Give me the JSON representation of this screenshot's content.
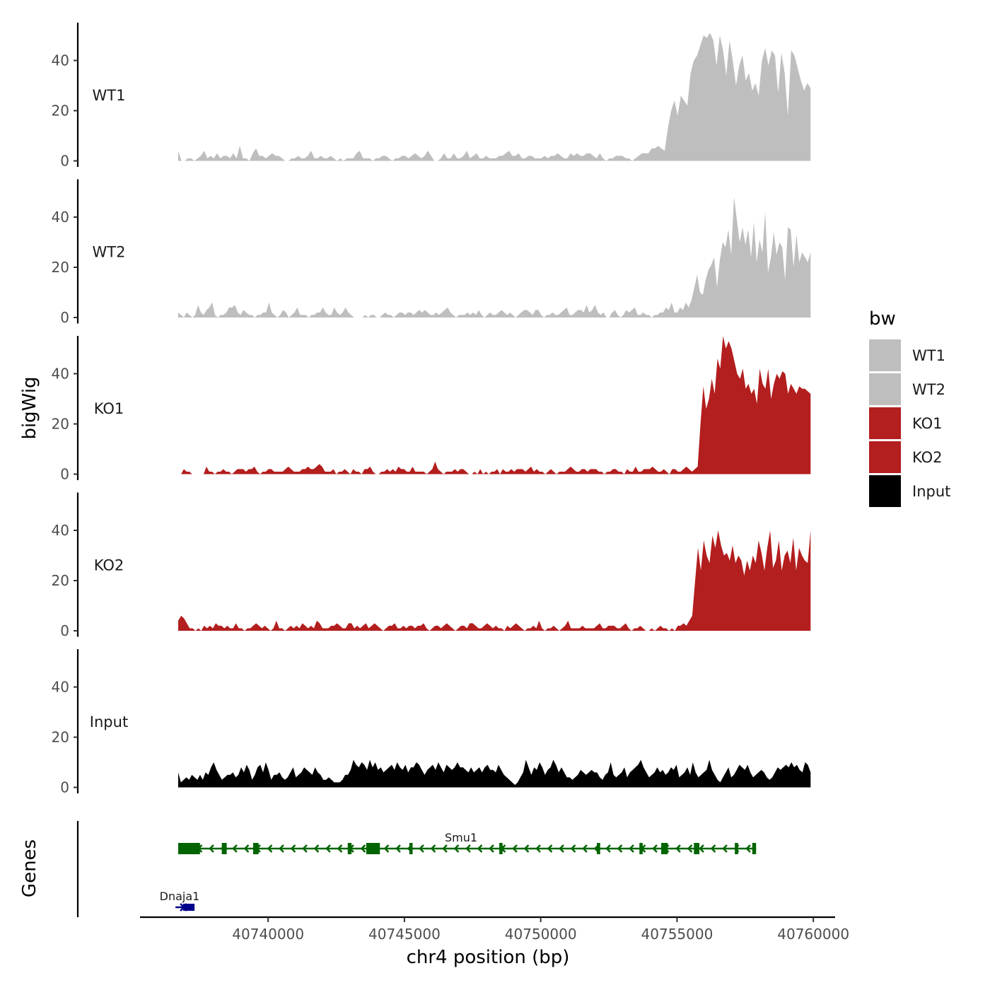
{
  "chart_data": {
    "type": "area",
    "title": "",
    "xlabel": "chr4 position (bp)",
    "ylabel": "bigWig",
    "genes_label": "Genes",
    "x_range": [
      40736700,
      40759900
    ],
    "xlim": [
      40735300,
      40760800
    ],
    "x_ticks": [
      40740000,
      40745000,
      40750000,
      40755000,
      40760000
    ],
    "x_tick_labels": [
      "40740000",
      "40745000",
      "40750000",
      "40755000",
      "40760000"
    ],
    "ylim": [
      0,
      55
    ],
    "y_ticks": [
      0,
      20,
      40
    ],
    "y_tick_labels": [
      "0",
      "20",
      "40"
    ],
    "legend": {
      "title": "bw",
      "position": "right",
      "entries": [
        {
          "label": "WT1",
          "color": "#bebebe"
        },
        {
          "label": "WT2",
          "color": "#bebebe"
        },
        {
          "label": "KO1",
          "color": "#b31e1e"
        },
        {
          "label": "KO2",
          "color": "#b31e1e"
        },
        {
          "label": "Input",
          "color": "#000000"
        }
      ]
    },
    "series": [
      {
        "name": "WT1",
        "color": "#bebebe",
        "values": [
          4,
          0,
          0,
          1,
          1,
          0,
          1,
          2,
          4,
          1,
          2,
          1,
          3,
          1,
          2,
          2,
          1,
          3,
          1,
          6,
          1,
          1,
          0,
          3,
          5,
          2,
          2,
          1,
          2,
          3,
          2,
          2,
          1,
          0,
          0,
          1,
          1,
          2,
          1,
          1,
          2,
          4,
          1,
          1,
          2,
          1,
          1,
          2,
          1,
          0,
          1,
          0,
          1,
          1,
          1,
          3,
          4,
          1,
          1,
          1,
          0,
          1,
          1,
          2,
          2,
          1,
          0,
          1,
          1,
          2,
          2,
          1,
          2,
          3,
          2,
          1,
          2,
          4,
          2,
          0,
          0,
          1,
          3,
          1,
          1,
          3,
          1,
          1,
          2,
          4,
          1,
          2,
          3,
          1,
          1,
          2,
          1,
          1,
          1,
          2,
          2,
          3,
          4,
          2,
          2,
          3,
          1,
          1,
          2,
          2,
          1,
          1,
          1,
          2,
          1,
          2,
          2,
          3,
          2,
          1,
          1,
          3,
          2,
          3,
          2,
          2,
          3,
          3,
          2,
          1,
          3,
          1,
          0,
          1,
          1,
          2,
          2,
          2,
          1,
          1,
          0,
          1,
          2,
          3,
          3,
          3,
          5,
          5,
          6,
          5,
          4,
          13,
          20,
          24,
          18,
          26,
          24,
          22,
          35,
          40,
          42,
          46,
          50,
          49,
          51,
          48,
          38,
          50,
          44,
          34,
          48,
          40,
          30,
          38,
          42,
          32,
          35,
          28,
          31,
          26,
          40,
          45,
          38,
          44,
          42,
          27,
          43,
          35,
          18,
          44,
          42,
          37,
          32,
          28,
          31,
          29
        ]
      },
      {
        "name": "WT2",
        "color": "#bebebe",
        "values": [
          2,
          1,
          0,
          2,
          1,
          0,
          1,
          5,
          2,
          1,
          3,
          4,
          6,
          1,
          0,
          1,
          1,
          2,
          4,
          4,
          5,
          2,
          1,
          3,
          2,
          1,
          1,
          0,
          1,
          1,
          2,
          2,
          6,
          2,
          1,
          0,
          1,
          3,
          2,
          0,
          1,
          2,
          4,
          1,
          1,
          1,
          0,
          1,
          1,
          2,
          2,
          4,
          2,
          1,
          1,
          4,
          2,
          1,
          2,
          4,
          2,
          1,
          0,
          0,
          0,
          0,
          1,
          0,
          1,
          1,
          0,
          0,
          1,
          2,
          1,
          1,
          0,
          1,
          2,
          2,
          1,
          2,
          2,
          1,
          2,
          3,
          2,
          3,
          2,
          1,
          1,
          2,
          1,
          2,
          3,
          4,
          2,
          1,
          0,
          1,
          1,
          1,
          2,
          1,
          2,
          1,
          3,
          1,
          0,
          1,
          2,
          1,
          1,
          2,
          3,
          2,
          1,
          2,
          1,
          0,
          1,
          2,
          3,
          3,
          2,
          1,
          3,
          3,
          1,
          0,
          1,
          1,
          2,
          1,
          1,
          2,
          3,
          4,
          1,
          1,
          2,
          3,
          3,
          2,
          5,
          2,
          3,
          5,
          2,
          1,
          2,
          0,
          0,
          2,
          3,
          1,
          0,
          1,
          3,
          2,
          3,
          4,
          1,
          1,
          2,
          1,
          1,
          0,
          1,
          1,
          2,
          2,
          4,
          3,
          6,
          2,
          2,
          4,
          3,
          6,
          4,
          7,
          12,
          17,
          10,
          9,
          15,
          19,
          21,
          24,
          12,
          23,
          30,
          28,
          35,
          25,
          48,
          39,
          30,
          36,
          29,
          35,
          24,
          38,
          22,
          31,
          26,
          42,
          18,
          24,
          34,
          25,
          30,
          28,
          15,
          36,
          35,
          20,
          33,
          22,
          26,
          24,
          22,
          26
        ]
      },
      {
        "name": "KO1",
        "color": "#b31e1e",
        "values": [
          0,
          0,
          2,
          1,
          1,
          0,
          0,
          0,
          0,
          0,
          3,
          1,
          1,
          0,
          1,
          1,
          2,
          1,
          1,
          0,
          1,
          2,
          2,
          2,
          1,
          2,
          2,
          3,
          1,
          0,
          1,
          1,
          2,
          2,
          1,
          1,
          1,
          1,
          2,
          3,
          2,
          1,
          1,
          1,
          2,
          2,
          3,
          2,
          2,
          3,
          4,
          3,
          1,
          1,
          1,
          2,
          0,
          1,
          1,
          2,
          1,
          0,
          2,
          1,
          1,
          0,
          2,
          2,
          3,
          1,
          0,
          0,
          1,
          1,
          2,
          1,
          2,
          1,
          3,
          2,
          2,
          1,
          1,
          3,
          1,
          1,
          1,
          1,
          0,
          1,
          2,
          5,
          2,
          1,
          0,
          1,
          1,
          1,
          2,
          1,
          2,
          2,
          1,
          0,
          0,
          1,
          0,
          2,
          0,
          1,
          0,
          1,
          1,
          2,
          0,
          2,
          1,
          1,
          2,
          1,
          2,
          2,
          2,
          1,
          2,
          3,
          1,
          2,
          1,
          1,
          0,
          1,
          2,
          1,
          0,
          1,
          1,
          1,
          2,
          3,
          2,
          1,
          1,
          2,
          2,
          1,
          2,
          2,
          2,
          1,
          1,
          0,
          1,
          1,
          2,
          2,
          1,
          1,
          0,
          2,
          1,
          1,
          3,
          1,
          1,
          2,
          2,
          2,
          3,
          2,
          1,
          1,
          2,
          1,
          0,
          2,
          2,
          1,
          1,
          2,
          3,
          2,
          1,
          2,
          3,
          20,
          35,
          26,
          30,
          38,
          32,
          46,
          42,
          55,
          50,
          53,
          50,
          45,
          40,
          38,
          42,
          34,
          36,
          32,
          34,
          28,
          42,
          36,
          34,
          42,
          30,
          36,
          40,
          38,
          41,
          40,
          32,
          36,
          34,
          32,
          35,
          34,
          34,
          33,
          32
        ]
      },
      {
        "name": "KO2",
        "color": "#b31e1e",
        "values": [
          4,
          6,
          5,
          3,
          1,
          1,
          0,
          1,
          0,
          2,
          1,
          2,
          1,
          3,
          2,
          2,
          1,
          2,
          1,
          1,
          3,
          1,
          1,
          0,
          1,
          1,
          2,
          3,
          2,
          1,
          2,
          1,
          0,
          1,
          4,
          1,
          1,
          0,
          1,
          2,
          1,
          2,
          1,
          3,
          2,
          1,
          2,
          1,
          4,
          3,
          1,
          1,
          1,
          2,
          2,
          3,
          2,
          1,
          1,
          3,
          3,
          1,
          2,
          1,
          2,
          3,
          1,
          2,
          3,
          2,
          1,
          0,
          1,
          2,
          2,
          3,
          1,
          1,
          2,
          1,
          2,
          2,
          1,
          2,
          2,
          3,
          1,
          0,
          1,
          2,
          2,
          1,
          2,
          3,
          2,
          1,
          0,
          1,
          2,
          2,
          1,
          3,
          3,
          2,
          1,
          1,
          2,
          3,
          2,
          1,
          2,
          1,
          1,
          0,
          2,
          1,
          2,
          3,
          2,
          1,
          0,
          1,
          1,
          2,
          1,
          4,
          1,
          0,
          1,
          1,
          2,
          1,
          0,
          1,
          2,
          4,
          1,
          1,
          1,
          1,
          2,
          1,
          1,
          1,
          1,
          2,
          3,
          1,
          1,
          2,
          2,
          2,
          1,
          1,
          2,
          3,
          1,
          0,
          1,
          1,
          2,
          1,
          0,
          0,
          1,
          0,
          1,
          2,
          1,
          1,
          0,
          1,
          0,
          2,
          2,
          3,
          2,
          4,
          6,
          20,
          33,
          24,
          36,
          30,
          27,
          38,
          33,
          40,
          34,
          30,
          31,
          28,
          34,
          27,
          30,
          28,
          22,
          28,
          24,
          30,
          27,
          36,
          31,
          24,
          33,
          40,
          25,
          28,
          36,
          24,
          30,
          32,
          27,
          37,
          24,
          33,
          30,
          28,
          27,
          40
        ]
      },
      {
        "name": "Input",
        "color": "#000000",
        "values": [
          6,
          2,
          3,
          4,
          3,
          5,
          4,
          3,
          5,
          3,
          6,
          5,
          8,
          10,
          7,
          5,
          3,
          4,
          5,
          5,
          6,
          4,
          5,
          8,
          6,
          9,
          7,
          3,
          5,
          8,
          9,
          6,
          10,
          7,
          3,
          5,
          5,
          6,
          4,
          3,
          4,
          6,
          8,
          4,
          5,
          6,
          8,
          7,
          6,
          5,
          8,
          6,
          5,
          3,
          3,
          4,
          3,
          2,
          2,
          2,
          3,
          5,
          5,
          7,
          11,
          9,
          8,
          10,
          9,
          7,
          11,
          8,
          10,
          7,
          8,
          6,
          7,
          8,
          9,
          7,
          10,
          8,
          7,
          9,
          6,
          8,
          8,
          10,
          9,
          7,
          5,
          7,
          8,
          9,
          7,
          10,
          8,
          6,
          9,
          8,
          7,
          8,
          10,
          8,
          8,
          7,
          6,
          8,
          6,
          7,
          8,
          6,
          8,
          9,
          7,
          7,
          6,
          9,
          7,
          5,
          4,
          3,
          2,
          1,
          2,
          4,
          6,
          11,
          8,
          5,
          8,
          7,
          10,
          8,
          5,
          7,
          8,
          11,
          9,
          6,
          8,
          6,
          4,
          4,
          3,
          4,
          5,
          7,
          6,
          5,
          6,
          7,
          6,
          6,
          4,
          3,
          5,
          6,
          10,
          5,
          4,
          5,
          6,
          8,
          4,
          6,
          7,
          8,
          9,
          11,
          8,
          6,
          4,
          5,
          6,
          8,
          6,
          7,
          5,
          6,
          8,
          7,
          9,
          4,
          5,
          6,
          8,
          5,
          10,
          6,
          4,
          5,
          6,
          7,
          11,
          7,
          5,
          3,
          2,
          4,
          6,
          8,
          4,
          5,
          7,
          9,
          8,
          7,
          9,
          6,
          4,
          5,
          6,
          7,
          6,
          4,
          3,
          4,
          6,
          8,
          7,
          8,
          9,
          8,
          10,
          8,
          9,
          7,
          6,
          10,
          9,
          6
        ]
      }
    ],
    "genes": [
      {
        "name": "Smu1",
        "color": "#006400",
        "strand": "-",
        "start": 40736700,
        "end": 40757900,
        "row": 1,
        "exons": [
          [
            40736700,
            40737500
          ],
          [
            40738300,
            40738480
          ],
          [
            40739450,
            40739650
          ],
          [
            40742920,
            40743060
          ],
          [
            40743600,
            40744100
          ],
          [
            40745180,
            40745300
          ],
          [
            40748480,
            40748600
          ],
          [
            40752060,
            40752180
          ],
          [
            40753620,
            40753740
          ],
          [
            40754420,
            40754660
          ],
          [
            40755620,
            40755820
          ],
          [
            40757120,
            40757240
          ],
          [
            40757760,
            40757900
          ]
        ]
      },
      {
        "name": "Dnaja1",
        "color": "#00008b",
        "strand": "+",
        "start": 40736600,
        "end": 40737300,
        "row": 2,
        "exons": [
          [
            40736880,
            40737300
          ]
        ]
      }
    ]
  }
}
